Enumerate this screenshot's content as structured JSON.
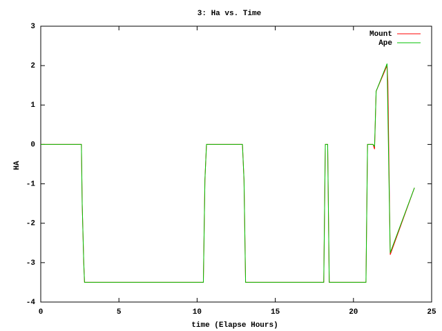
{
  "chart_data": {
    "type": "line",
    "title": "3: Ha vs. Time",
    "x_label": "time (Elapse Hours)",
    "y_label": "HA",
    "x": [
      0,
      2.6,
      2.65,
      2.75,
      2.8,
      10.4,
      10.5,
      10.6,
      12.9,
      13.0,
      13.1,
      18.1,
      18.2,
      18.35,
      18.45,
      20.8,
      20.9,
      21.25,
      21.35,
      21.45,
      22.15,
      22.2,
      22.35,
      23.9
    ],
    "series": [
      {
        "name": "Mount",
        "color": "#ff0000",
        "values": [
          0,
          0,
          -1.5,
          -3.0,
          -3.5,
          -3.5,
          -0.9,
          0,
          0,
          -0.9,
          -3.5,
          -3.5,
          0,
          0,
          -3.5,
          -3.5,
          0,
          0,
          -0.12,
          1.35,
          2.0,
          1.6,
          -2.8,
          -1.1
        ]
      },
      {
        "name": "Ape",
        "color": "#00c000",
        "values": [
          0,
          0,
          -1.5,
          -3.0,
          -3.5,
          -3.5,
          -0.9,
          0,
          0,
          -0.9,
          -3.5,
          -3.5,
          0,
          0,
          -3.5,
          -3.5,
          0,
          0,
          -0.05,
          1.35,
          2.05,
          0.8,
          -2.75,
          -1.1
        ]
      }
    ],
    "xlim": [
      0,
      25
    ],
    "xticks": [
      0,
      5,
      10,
      15,
      20,
      25
    ],
    "ylim": [
      -4,
      3
    ],
    "yticks": [
      -4,
      -3,
      -2,
      -1,
      0,
      1,
      2,
      3
    ],
    "legend": "top-right"
  }
}
